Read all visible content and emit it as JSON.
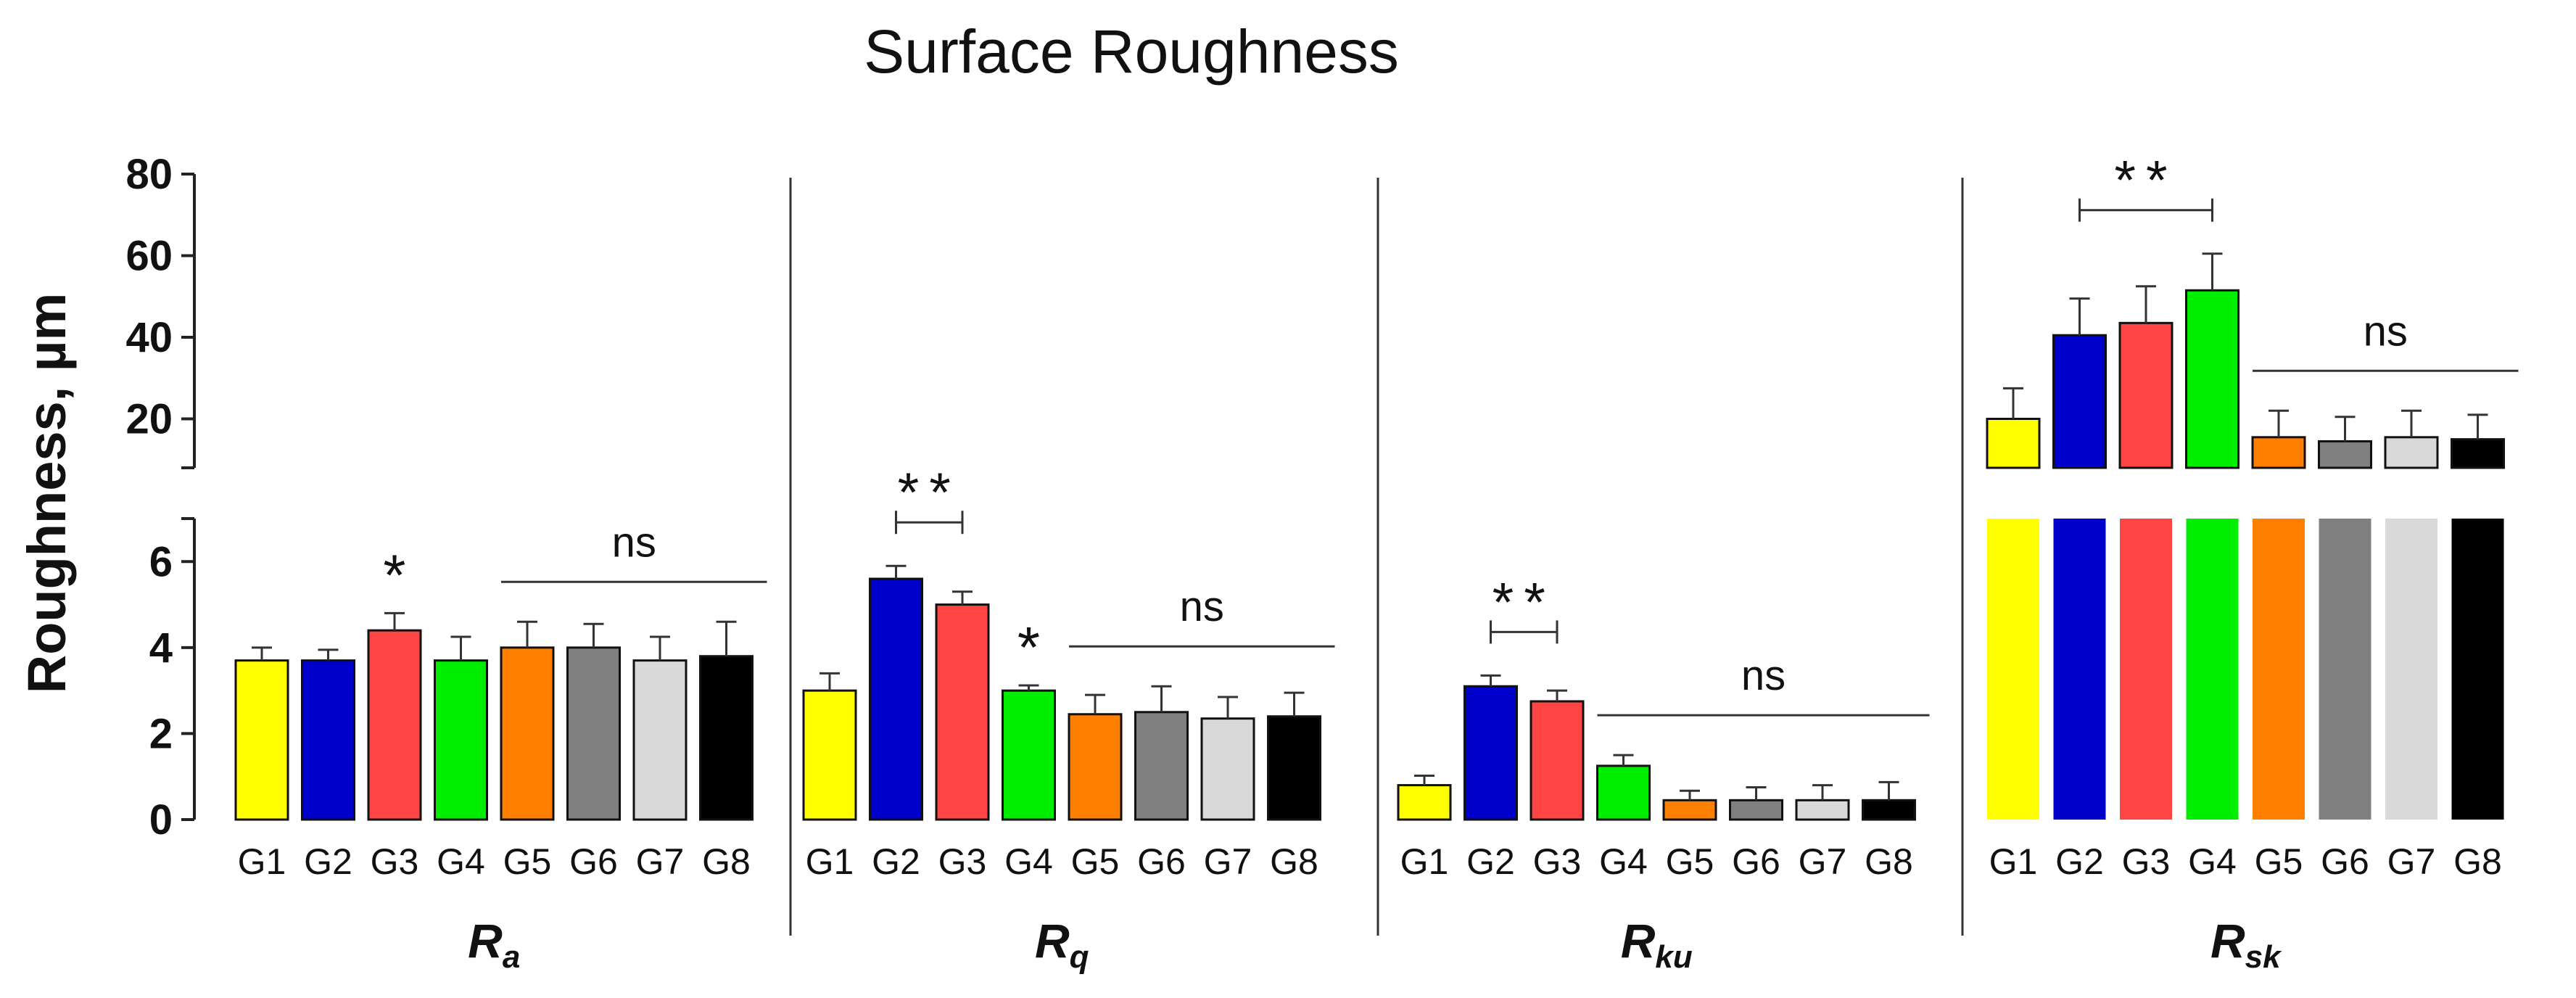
{
  "chart_data": {
    "type": "bar",
    "title": "Surface Roughness",
    "ylabel": "Roughness, µm",
    "axis_break": true,
    "y_lower_range": [
      0,
      7
    ],
    "y_lower_ticks": [
      0,
      2,
      4,
      6
    ],
    "y_upper_range": [
      8,
      80
    ],
    "y_upper_ticks": [
      20,
      40,
      60,
      80
    ],
    "categories": [
      "G1",
      "G2",
      "G3",
      "G4",
      "G5",
      "G6",
      "G7",
      "G8"
    ],
    "colors": [
      "#ffff00",
      "#0000cc",
      "#ff4444",
      "#00ee00",
      "#ff8000",
      "#808080",
      "#d9d9d9",
      "#000000"
    ],
    "panels": [
      {
        "label": "R",
        "subscript": "a",
        "values": [
          3.7,
          3.7,
          4.4,
          3.7,
          4.0,
          4.0,
          3.7,
          3.8
        ],
        "errors": [
          0.3,
          0.25,
          0.4,
          0.55,
          0.6,
          0.55,
          0.55,
          0.8
        ],
        "annotations": [
          {
            "text": "*",
            "type": "star",
            "bar": 2
          },
          {
            "text": "ns",
            "type": "line",
            "from": 4,
            "to": 7
          }
        ]
      },
      {
        "label": "R",
        "subscript": "q",
        "values": [
          3.0,
          5.6,
          5.0,
          3.0,
          2.45,
          2.5,
          2.35,
          2.4
        ],
        "errors": [
          0.4,
          0.3,
          0.3,
          0.12,
          0.45,
          0.6,
          0.5,
          0.55
        ],
        "annotations": [
          {
            "text": "**",
            "type": "bracket",
            "from": 1,
            "to": 2
          },
          {
            "text": "*",
            "type": "star",
            "bar": 3
          },
          {
            "text": "ns",
            "type": "line",
            "from": 4,
            "to": 7
          }
        ]
      },
      {
        "label": "R",
        "subscript": "ku",
        "values": [
          0.8,
          3.1,
          2.75,
          1.25,
          0.45,
          0.45,
          0.45,
          0.45
        ],
        "errors": [
          0.22,
          0.25,
          0.25,
          0.25,
          0.22,
          0.3,
          0.35,
          0.42
        ],
        "annotations": [
          {
            "text": "**",
            "type": "bracket",
            "from": 1,
            "to": 2
          },
          {
            "text": "ns",
            "type": "line",
            "from": 3,
            "to": 7
          }
        ]
      },
      {
        "label": "R",
        "subscript": "sk",
        "values": [
          20,
          40.5,
          43.5,
          51.5,
          15.5,
          14.5,
          15.5,
          15
        ],
        "errors": [
          7.5,
          9,
          9,
          9,
          6.5,
          6,
          6.5,
          6
        ],
        "annotations": [
          {
            "text": "**",
            "type": "bracket",
            "from": 1,
            "to": 3
          },
          {
            "text": "ns",
            "type": "line",
            "from": 4,
            "to": 7
          }
        ]
      }
    ]
  }
}
